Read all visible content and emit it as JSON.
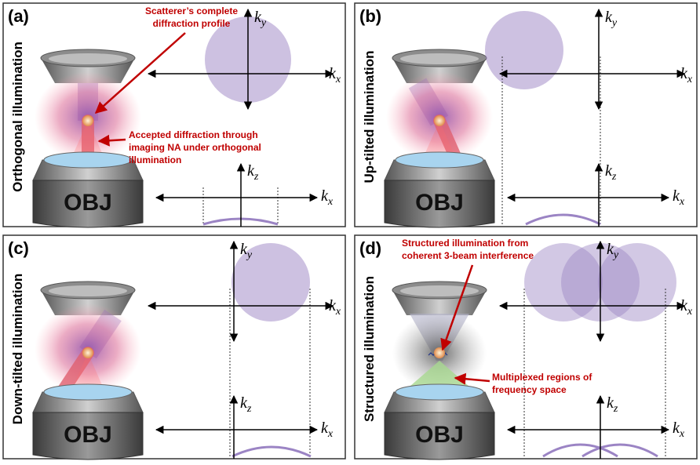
{
  "panels": [
    {
      "label": "(a)",
      "side_label": "Orthogonal illumination",
      "objective": "OBJ",
      "annotations": [
        [
          "Scatterer’s complete",
          "diffraction profile"
        ],
        [
          "Accepted diffraction through",
          "imaging NA under orthogonal",
          "illumination"
        ]
      ],
      "axes": {
        "top": {
          "vertical": {
            "k": "k",
            "sub": "y"
          },
          "horizontal": {
            "k": "k",
            "sub": "x"
          }
        },
        "bottom": {
          "vertical": {
            "k": "k",
            "sub": "z"
          },
          "horizontal": {
            "k": "k",
            "sub": "x"
          }
        }
      }
    },
    {
      "label": "(b)",
      "side_label": "Up-tilted illumination",
      "objective": "OBJ",
      "annotations": [],
      "axes": {
        "top": {
          "vertical": {
            "k": "k",
            "sub": "y"
          },
          "horizontal": {
            "k": "k",
            "sub": "x"
          }
        },
        "bottom": {
          "vertical": {
            "k": "k",
            "sub": "z"
          },
          "horizontal": {
            "k": "k",
            "sub": "x"
          }
        }
      }
    },
    {
      "label": "(c)",
      "side_label": "Down-tilted illumination",
      "objective": "OBJ",
      "annotations": [],
      "axes": {
        "top": {
          "vertical": {
            "k": "k",
            "sub": "y"
          },
          "horizontal": {
            "k": "k",
            "sub": "x"
          }
        },
        "bottom": {
          "vertical": {
            "k": "k",
            "sub": "z"
          },
          "horizontal": {
            "k": "k",
            "sub": "x"
          }
        }
      }
    },
    {
      "label": "(d)",
      "side_label": "Structured illumination",
      "objective": "OBJ",
      "annotations": [
        [
          "Structured illumination from",
          "coherent 3-beam interference"
        ],
        [
          "Multiplexed regions of",
          "frequency space"
        ]
      ],
      "axes": {
        "top": {
          "vertical": {
            "k": "k",
            "sub": "y"
          },
          "horizontal": {
            "k": "k",
            "sub": "x"
          }
        },
        "bottom": {
          "vertical": {
            "k": "k",
            "sub": "z"
          },
          "horizontal": {
            "k": "k",
            "sub": "x"
          }
        }
      }
    }
  ]
}
